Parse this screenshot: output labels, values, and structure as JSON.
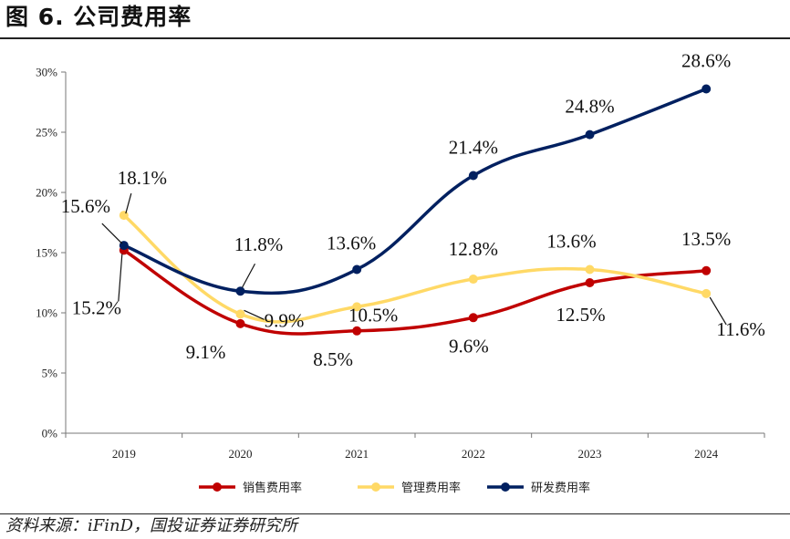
{
  "figure": {
    "title": "图 6. 公司费用率",
    "source": "资料来源：iFinD，国投证券证券研究所"
  },
  "chart_data": {
    "type": "line",
    "title": "图 6. 公司费用率",
    "categories": [
      "2019",
      "2020",
      "2021",
      "2022",
      "2023",
      "2024"
    ],
    "ylim": [
      0,
      30
    ],
    "yticks": [
      0,
      5,
      10,
      15,
      20,
      25,
      30
    ],
    "ytick_labels": [
      "0%",
      "5%",
      "10%",
      "15%",
      "20%",
      "25%",
      "30%"
    ],
    "legend_position": "bottom",
    "series": [
      {
        "name": "销售费用率",
        "color": "#c00000",
        "values": [
          15.2,
          9.1,
          8.5,
          9.6,
          12.5,
          13.5
        ],
        "labels": [
          "15.2%",
          "9.1%",
          "8.5%",
          "9.6%",
          "12.5%",
          "13.5%"
        ]
      },
      {
        "name": "管理费用率",
        "color": "#ffd966",
        "values": [
          18.1,
          9.9,
          10.5,
          12.8,
          13.6,
          11.6
        ],
        "labels": [
          "18.1%",
          "9.9%",
          "10.5%",
          "12.8%",
          "13.6%",
          "11.6%"
        ]
      },
      {
        "name": "研发费用率",
        "color": "#002060",
        "values": [
          15.6,
          11.8,
          13.6,
          21.4,
          24.8,
          28.6
        ],
        "labels": [
          "15.6%",
          "11.8%",
          "13.6%",
          "21.4%",
          "24.8%",
          "28.6%"
        ]
      }
    ]
  }
}
